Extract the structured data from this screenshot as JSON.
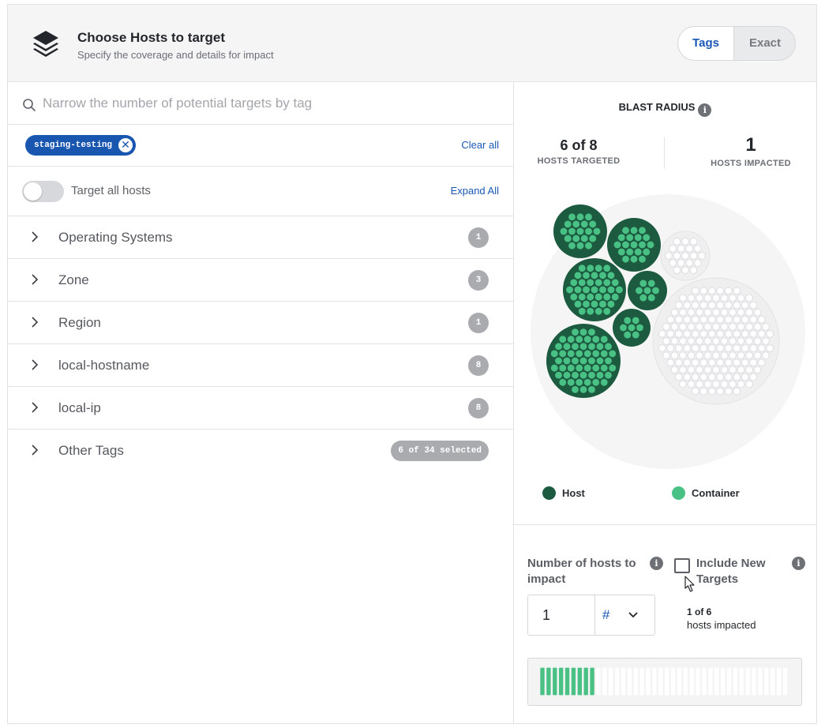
{
  "header": {
    "title": "Choose Hosts to target",
    "subtitle": "Specify the coverage and details for impact",
    "mode_tabs": [
      "Tags",
      "Exact"
    ],
    "active_mode": "Tags"
  },
  "search": {
    "placeholder": "Narrow the number of potential targets by tag"
  },
  "selected_tags": [
    "staging-testing"
  ],
  "clear_all": "Clear all",
  "target_all": {
    "label": "Target all hosts",
    "enabled": false
  },
  "expand_all": "Expand All",
  "categories": [
    {
      "label": "Operating Systems",
      "count": "1"
    },
    {
      "label": "Zone",
      "count": "3"
    },
    {
      "label": "Region",
      "count": "1"
    },
    {
      "label": "local-hostname",
      "count": "8"
    },
    {
      "label": "local-ip",
      "count": "8"
    },
    {
      "label": "Other Tags",
      "count": "6 of 34 selected"
    }
  ],
  "blast_radius": {
    "title": "BLAST RADIUS",
    "targeted_value": "6 of 8",
    "targeted_label": "HOSTS TARGETED",
    "impacted_value": "1",
    "impacted_label": "HOSTS IMPACTED",
    "legend": [
      {
        "label": "Host",
        "color": "#1c5b40"
      },
      {
        "label": "Container",
        "color": "#49c184"
      }
    ]
  },
  "impact": {
    "hosts_label": "Number of hosts to impact",
    "value": "1",
    "unit": "#",
    "include_new_label": "Include New Targets",
    "include_new_checked": false,
    "summary_count": "1 of 6",
    "summary_label": "hosts impacted",
    "bar_total": 40,
    "bar_filled": 9
  },
  "colors": {
    "accent": "#1a57b6",
    "host": "#1c5b40",
    "container": "#49c184",
    "inactive": "#efefef"
  }
}
